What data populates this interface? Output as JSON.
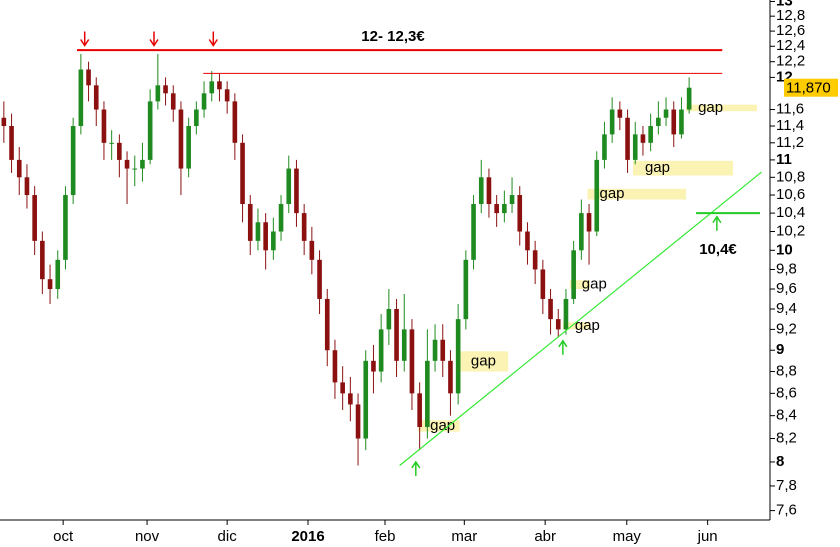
{
  "chart_data": {
    "type": "candlestick",
    "log_scale": true,
    "grid": false,
    "up_color": "#1f8a1f",
    "down_color": "#8b1010",
    "categories": [
      null,
      null,
      null,
      null,
      null,
      null,
      null,
      null,
      null,
      null,
      null,
      null,
      null,
      null,
      null,
      null,
      null,
      null,
      null,
      null,
      null,
      null,
      null,
      null,
      null,
      null,
      null,
      null,
      null,
      null,
      null,
      null,
      null,
      null,
      null,
      null,
      null,
      null,
      null,
      null,
      null,
      null,
      null,
      null,
      null,
      null,
      null,
      null,
      null,
      null,
      null,
      null,
      null,
      null,
      null,
      null,
      null,
      null,
      null,
      null,
      null,
      null,
      null,
      null,
      null,
      null,
      null,
      null,
      null,
      null,
      null,
      null,
      null,
      null,
      null,
      null,
      null,
      null,
      null,
      null,
      null,
      null,
      null,
      null,
      null,
      null,
      null,
      null,
      null,
      null
    ],
    "open": [
      11.5,
      11.4,
      11.0,
      10.8,
      10.6,
      10.1,
      9.7,
      9.6,
      9.9,
      10.6,
      11.4,
      12.1,
      11.9,
      11.6,
      11.2,
      11.2,
      11.0,
      10.9,
      10.9,
      11.0,
      11.7,
      11.9,
      11.8,
      11.6,
      10.9,
      11.4,
      11.6,
      11.8,
      11.95,
      11.85,
      11.7,
      11.2,
      10.5,
      10.1,
      10.3,
      10.0,
      10.2,
      10.5,
      10.9,
      10.4,
      10.1,
      9.9,
      9.5,
      9.0,
      8.7,
      8.6,
      8.5,
      8.2,
      8.9,
      8.8,
      9.2,
      9.4,
      8.9,
      9.2,
      8.6,
      8.3,
      8.9,
      9.1,
      8.9,
      8.6,
      9.3,
      9.9,
      10.5,
      10.8,
      10.5,
      10.4,
      10.5,
      10.6,
      10.2,
      10.0,
      9.8,
      9.5,
      9.3,
      9.2,
      9.5,
      10.0,
      10.4,
      10.2,
      11.0,
      11.3,
      11.6,
      11.5,
      11.0,
      11.3,
      11.2,
      11.4,
      11.5,
      11.6,
      11.3,
      11.6
    ],
    "high": [
      11.7,
      11.55,
      11.15,
      10.95,
      10.7,
      10.2,
      9.85,
      10.0,
      10.7,
      11.5,
      12.3,
      12.2,
      12.0,
      11.7,
      11.35,
      11.3,
      11.1,
      11.05,
      11.2,
      11.85,
      12.3,
      12.0,
      11.9,
      11.7,
      11.5,
      11.7,
      11.95,
      12.08,
      12.05,
      11.95,
      11.8,
      11.3,
      10.6,
      10.45,
      10.4,
      10.35,
      10.6,
      11.05,
      11.0,
      10.5,
      10.25,
      10.0,
      9.6,
      9.1,
      8.85,
      8.75,
      8.6,
      9.0,
      9.05,
      9.35,
      9.6,
      9.5,
      9.55,
      9.3,
      8.7,
      9.2,
      9.25,
      9.25,
      9.0,
      9.45,
      10.0,
      10.6,
      11.0,
      10.9,
      10.6,
      10.65,
      10.8,
      10.7,
      10.3,
      10.1,
      9.9,
      9.6,
      9.4,
      9.6,
      10.1,
      10.55,
      10.5,
      11.1,
      11.45,
      11.75,
      11.7,
      11.6,
      11.45,
      11.4,
      11.55,
      11.7,
      11.75,
      11.7,
      11.75,
      12.0
    ],
    "low": [
      11.2,
      10.85,
      10.6,
      10.45,
      9.95,
      9.55,
      9.45,
      9.5,
      9.8,
      10.5,
      11.3,
      11.7,
      11.4,
      11.0,
      11.0,
      10.8,
      10.5,
      10.7,
      10.75,
      10.95,
      11.6,
      11.65,
      11.45,
      10.6,
      10.8,
      11.3,
      11.5,
      11.7,
      11.7,
      11.55,
      11.0,
      10.3,
      9.95,
      10.0,
      9.8,
      9.9,
      10.1,
      10.4,
      10.25,
      9.95,
      9.75,
      9.35,
      8.85,
      8.55,
      8.45,
      8.35,
      7.97,
      8.1,
      8.6,
      8.7,
      9.05,
      8.75,
      8.8,
      8.45,
      8.1,
      8.2,
      8.8,
      8.75,
      8.4,
      8.5,
      9.2,
      9.8,
      10.4,
      10.35,
      10.25,
      10.3,
      10.4,
      10.05,
      9.85,
      9.65,
      9.35,
      9.15,
      9.12,
      9.15,
      9.45,
      9.9,
      9.85,
      10.15,
      10.9,
      11.2,
      11.35,
      10.85,
      10.95,
      11.05,
      11.1,
      11.3,
      11.4,
      11.15,
      11.25,
      11.55
    ],
    "close": [
      11.4,
      11.0,
      10.8,
      10.6,
      10.1,
      9.7,
      9.6,
      9.9,
      10.6,
      11.4,
      12.1,
      11.9,
      11.6,
      11.2,
      11.2,
      11.0,
      10.9,
      10.9,
      11.0,
      11.7,
      11.9,
      11.8,
      11.6,
      10.9,
      11.4,
      11.6,
      11.8,
      11.95,
      11.85,
      11.7,
      11.2,
      10.5,
      10.1,
      10.3,
      10.0,
      10.2,
      10.5,
      10.9,
      10.4,
      10.1,
      9.9,
      9.5,
      9.0,
      8.7,
      8.6,
      8.5,
      8.2,
      8.9,
      8.8,
      9.2,
      9.4,
      8.9,
      9.2,
      8.6,
      8.3,
      8.9,
      9.1,
      8.9,
      8.6,
      9.3,
      9.9,
      10.5,
      10.8,
      10.5,
      10.4,
      10.5,
      10.6,
      10.2,
      10.0,
      9.8,
      9.5,
      9.3,
      9.2,
      9.5,
      10.0,
      10.4,
      10.2,
      11.0,
      11.3,
      11.6,
      11.5,
      11.0,
      11.3,
      11.2,
      11.4,
      11.5,
      11.6,
      11.3,
      11.6,
      11.87
    ],
    "xlim": [
      -0.5,
      99.5
    ],
    "xticks": [
      {
        "value": 7.7,
        "label": "oct"
      },
      {
        "value": 18.6,
        "label": "nov"
      },
      {
        "value": 29,
        "label": "dic"
      },
      {
        "value": 39.5,
        "label": "2016"
      },
      {
        "value": 49.5,
        "label": "feb"
      },
      {
        "value": 59.8,
        "label": "mar"
      },
      {
        "value": 70.3,
        "label": "abr"
      },
      {
        "value": 80.9,
        "label": "may"
      },
      {
        "value": 91.4,
        "label": "jun"
      }
    ],
    "ylim": [
      7.525,
      13.02
    ],
    "yticks": [
      {
        "value": 7.6,
        "label": "7,6"
      },
      {
        "value": 7.8,
        "label": "7,8"
      },
      8,
      {
        "value": 8.2,
        "label": "8,2"
      },
      {
        "value": 8.4,
        "label": "8,4"
      },
      {
        "value": 8.6,
        "label": "8,6"
      },
      {
        "value": 8.8,
        "label": "8,8"
      },
      9,
      {
        "value": 9.2,
        "label": "9,2"
      },
      {
        "value": 9.4,
        "label": "9,4"
      },
      {
        "value": 9.6,
        "label": "9,6"
      },
      {
        "value": 9.8,
        "label": "9,8"
      },
      10,
      {
        "value": 10.2,
        "label": "10,2"
      },
      {
        "value": 10.4,
        "label": "10,4"
      },
      {
        "value": 10.6,
        "label": "10,6"
      },
      {
        "value": 10.8,
        "label": "10,8"
      },
      11,
      {
        "value": 11.2,
        "label": "11,2"
      },
      {
        "value": 11.4,
        "label": "11,4"
      },
      {
        "value": 11.6,
        "label": "11,6"
      },
      12,
      {
        "value": 12.2,
        "label": "12,2"
      },
      {
        "value": 12.4,
        "label": "12,4"
      },
      {
        "value": 12.6,
        "label": "12,6"
      },
      {
        "value": 12.8,
        "label": "12,8"
      },
      13
    ],
    "price_marker": {
      "value": 11.87,
      "label": "11,870",
      "color": "#ffcc00"
    },
    "resistance": {
      "text": "12- 12,3€",
      "color": "#e80000",
      "lines": [
        {
          "value": 12.35,
          "from": 9.5,
          "to": 93.3,
          "width": 2
        },
        {
          "value": 12.05,
          "from": 25.9,
          "to": 93.3,
          "width": 1
        }
      ]
    },
    "support": {
      "text": "10,4€",
      "color": "#33e833",
      "line": {
        "from": 51.4,
        "to": 98.4,
        "start": 7.97,
        "end": 10.86
      },
      "level": {
        "value": 10.4,
        "from": 89.9,
        "to": 98.2
      }
    },
    "arrows": [
      {
        "x": 10.5,
        "value": 12.41,
        "dir": "down",
        "color": "#e80000"
      },
      {
        "x": 19.5,
        "value": 12.41,
        "dir": "down",
        "color": "#e80000"
      },
      {
        "x": 27.2,
        "value": 12.41,
        "dir": "down",
        "color": "#e80000"
      },
      {
        "x": 53.5,
        "value": 8.0,
        "dir": "up",
        "color": "#22cc22"
      },
      {
        "x": 72.6,
        "value": 9.09,
        "dir": "up",
        "color": "#22cc22"
      },
      {
        "x": 92.6,
        "value": 10.36,
        "dir": "up",
        "color": "#22cc22"
      }
    ],
    "gaps": [
      {
        "label": "gap",
        "from": 88.6,
        "to": 97.8,
        "low": 11.58,
        "high": 11.66
      },
      {
        "label": "gap",
        "from": 81.7,
        "to": 94.7,
        "low": 10.82,
        "high": 10.99
      },
      {
        "label": "gap",
        "from": 75.8,
        "to": 88.6,
        "low": 10.55,
        "high": 10.67
      },
      {
        "label": "gap",
        "from": 73.5,
        "to": 76.1,
        "low": 9.6,
        "high": 9.69
      },
      {
        "label": "gap",
        "from": 72.6,
        "to": 76.1,
        "low": 9.2,
        "high": 9.27
      },
      {
        "label": "gap",
        "from": 59.1,
        "to": 65.5,
        "low": 8.8,
        "high": 8.99
      },
      {
        "label": "gap",
        "from": 53.8,
        "to": 59.2,
        "low": 8.26,
        "high": 8.36
      }
    ]
  }
}
